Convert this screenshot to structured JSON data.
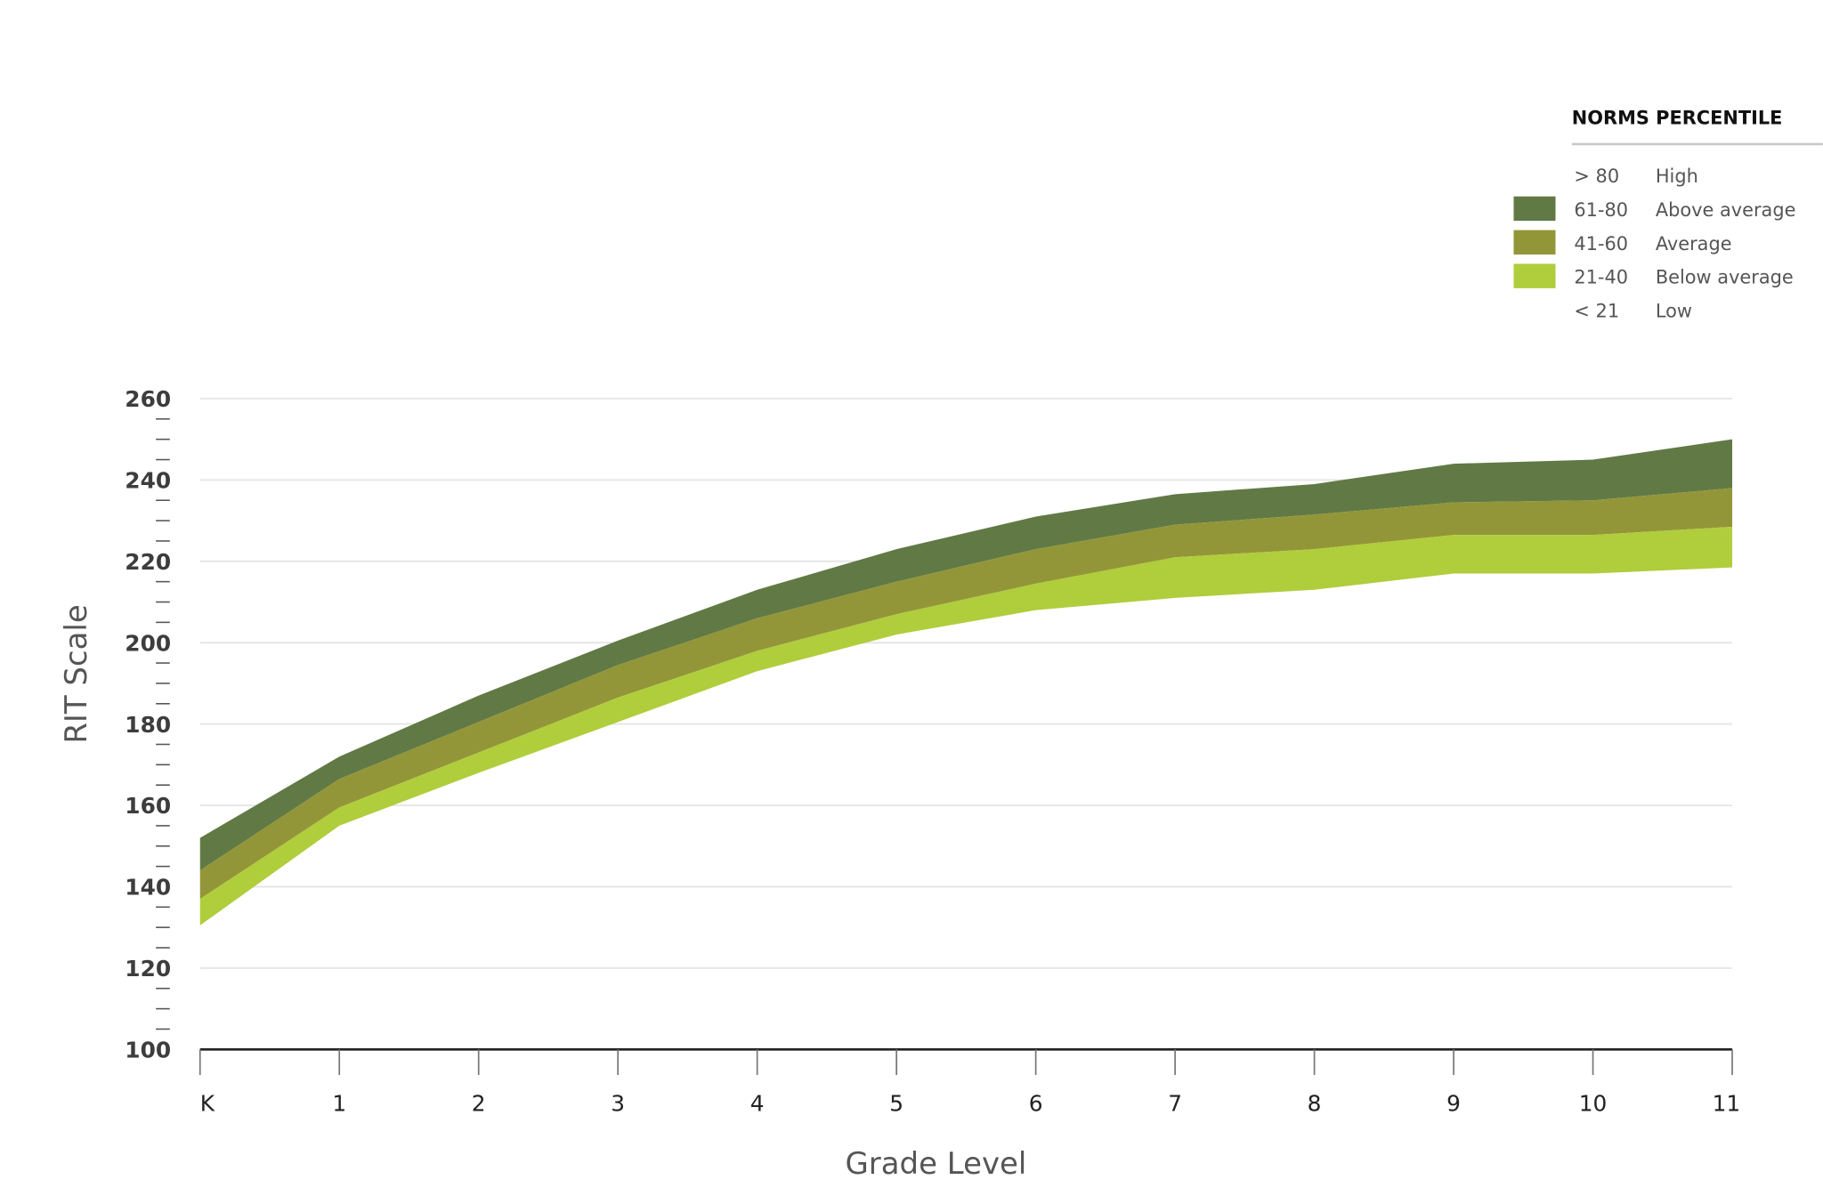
{
  "chart_data": {
    "type": "area",
    "xlabel": "Grade Level",
    "ylabel": "RIT Scale",
    "categories": [
      "K",
      "1",
      "2",
      "3",
      "4",
      "5",
      "6",
      "7",
      "8",
      "9",
      "10",
      "11"
    ],
    "ylim": [
      100,
      260
    ],
    "yticks": [
      100,
      120,
      140,
      160,
      180,
      200,
      220,
      240,
      260
    ],
    "grid": true,
    "legend_position": "top-right",
    "bands": [
      {
        "label": "Above average",
        "range": "61-80",
        "color": "#617a45",
        "upper": [
          152,
          172,
          187,
          200.5,
          213,
          223,
          231,
          236.5,
          239,
          244,
          245,
          250
        ],
        "lower": [
          144,
          166.5,
          180.5,
          194.5,
          206,
          215,
          223,
          229,
          231.5,
          234.5,
          235,
          238
        ]
      },
      {
        "label": "Average",
        "range": "41-60",
        "color": "#939638",
        "upper": [
          144,
          166.5,
          180.5,
          194.5,
          206,
          215,
          223,
          229,
          231.5,
          234.5,
          235,
          238
        ],
        "lower": [
          137,
          159.5,
          173,
          186.5,
          198,
          207,
          214.5,
          221,
          223,
          226.5,
          226.5,
          228.5
        ]
      },
      {
        "label": "Below average",
        "range": "21-40",
        "color": "#b0cd3c",
        "upper": [
          137,
          159.5,
          173,
          186.5,
          198,
          207,
          214.5,
          221,
          223,
          226.5,
          226.5,
          228.5
        ],
        "lower": [
          130.5,
          155,
          168,
          180.5,
          193,
          202,
          208,
          211,
          213,
          217,
          217,
          218.5
        ]
      }
    ]
  },
  "legend": {
    "title": "NORMS PERCENTILE",
    "rows": [
      {
        "range": "> 80",
        "label": "High",
        "color": ""
      },
      {
        "range": "61-80",
        "label": "Above average",
        "color": "#617a45"
      },
      {
        "range": "41-60",
        "label": "Average",
        "color": "#939638"
      },
      {
        "range": "21-40",
        "label": "Below average",
        "color": "#b0cd3c"
      },
      {
        "range": "< 21",
        "label": "Low",
        "color": ""
      }
    ]
  }
}
